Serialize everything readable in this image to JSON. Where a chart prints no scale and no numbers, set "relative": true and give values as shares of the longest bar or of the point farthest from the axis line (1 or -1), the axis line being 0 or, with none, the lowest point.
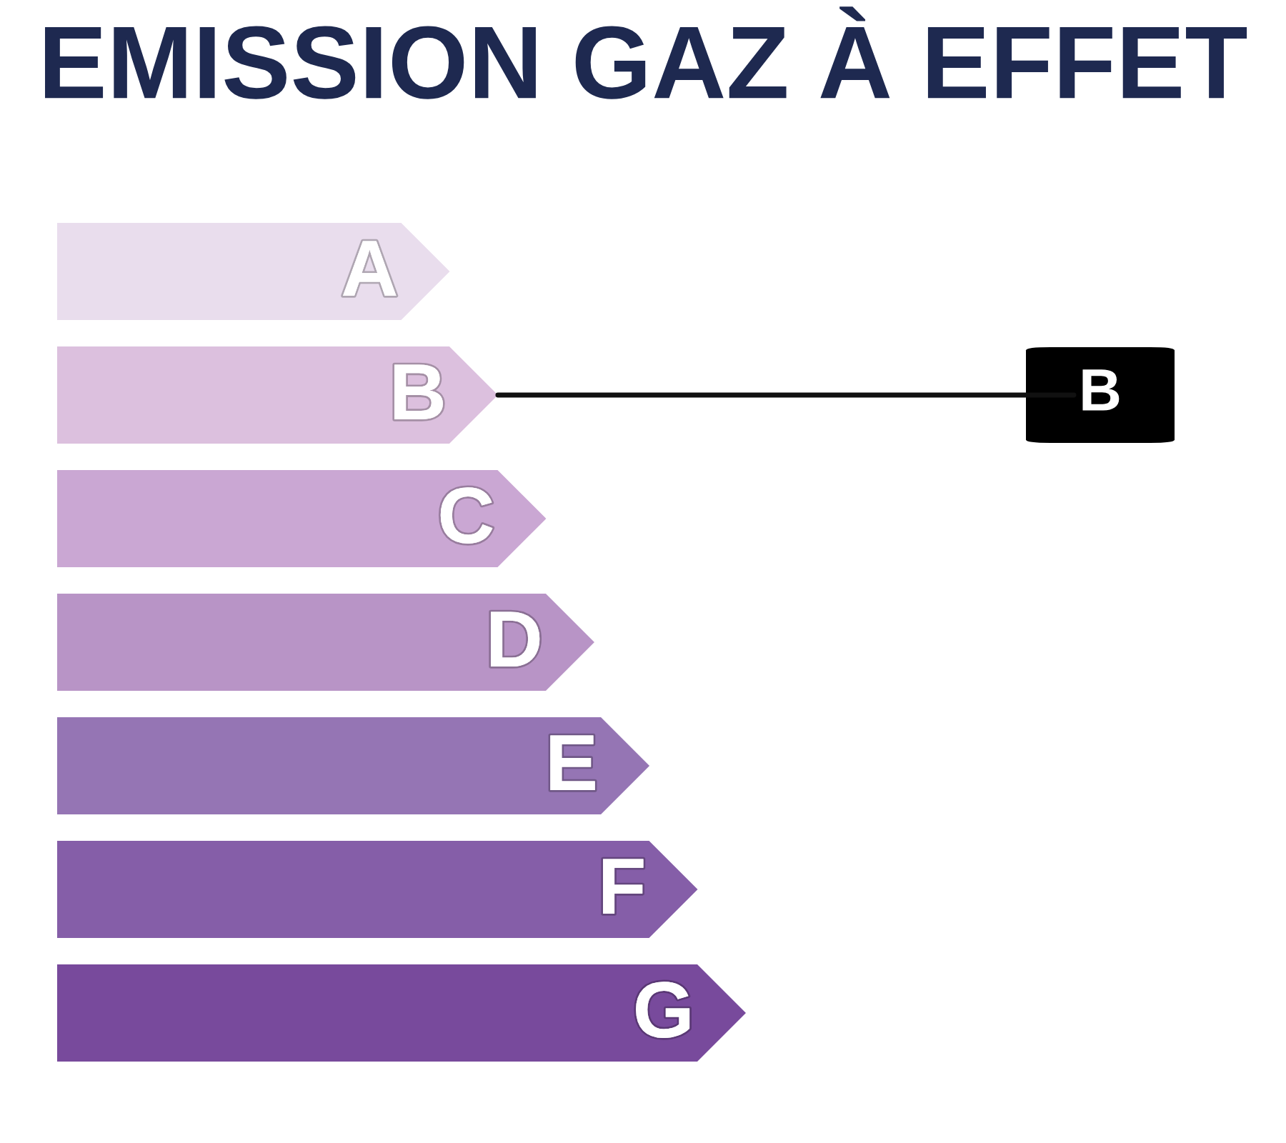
{
  "chart_data": {
    "type": "bar",
    "title": "EMISSION GAZ À EFFET",
    "orientation": "horizontal",
    "relative": true,
    "categories": [
      "A",
      "B",
      "C",
      "D",
      "E",
      "F",
      "G"
    ],
    "values": [
      0.57,
      0.64,
      0.71,
      0.78,
      0.86,
      0.93,
      1
    ],
    "colors": [
      "#e9dded",
      "#dcc0de",
      "#caa7d3",
      "#b894c6",
      "#9575b4",
      "#855ea8",
      "#784a9c"
    ],
    "annotations": [
      {
        "text": "B",
        "x": 0.64,
        "y": "B"
      }
    ]
  }
}
